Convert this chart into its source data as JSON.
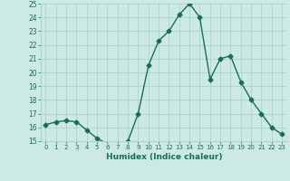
{
  "xlabel": "Humidex (Indice chaleur)",
  "x": [
    0,
    1,
    2,
    3,
    4,
    5,
    6,
    7,
    8,
    9,
    10,
    11,
    12,
    13,
    14,
    15,
    16,
    17,
    18,
    19,
    20,
    21,
    22,
    23
  ],
  "y": [
    16.2,
    16.4,
    16.5,
    16.4,
    15.8,
    15.2,
    14.8,
    14.8,
    15.0,
    17.0,
    20.5,
    22.3,
    23.0,
    24.2,
    25.0,
    24.0,
    19.5,
    21.0,
    21.2,
    19.3,
    18.0,
    17.0,
    16.0,
    15.5
  ],
  "line_color": "#1a6b5a",
  "bg_color": "#cce9e6",
  "grid_color": "#a8d4d0",
  "ylim": [
    15,
    25
  ],
  "xlim": [
    -0.5,
    23.5
  ],
  "yticks": [
    15,
    16,
    17,
    18,
    19,
    20,
    21,
    22,
    23,
    24,
    25
  ],
  "xticks": [
    0,
    1,
    2,
    3,
    4,
    5,
    6,
    7,
    8,
    9,
    10,
    11,
    12,
    13,
    14,
    15,
    16,
    17,
    18,
    19,
    20,
    21,
    22,
    23
  ],
  "marker": "D",
  "marker_size": 2.5,
  "line_width": 1.0
}
